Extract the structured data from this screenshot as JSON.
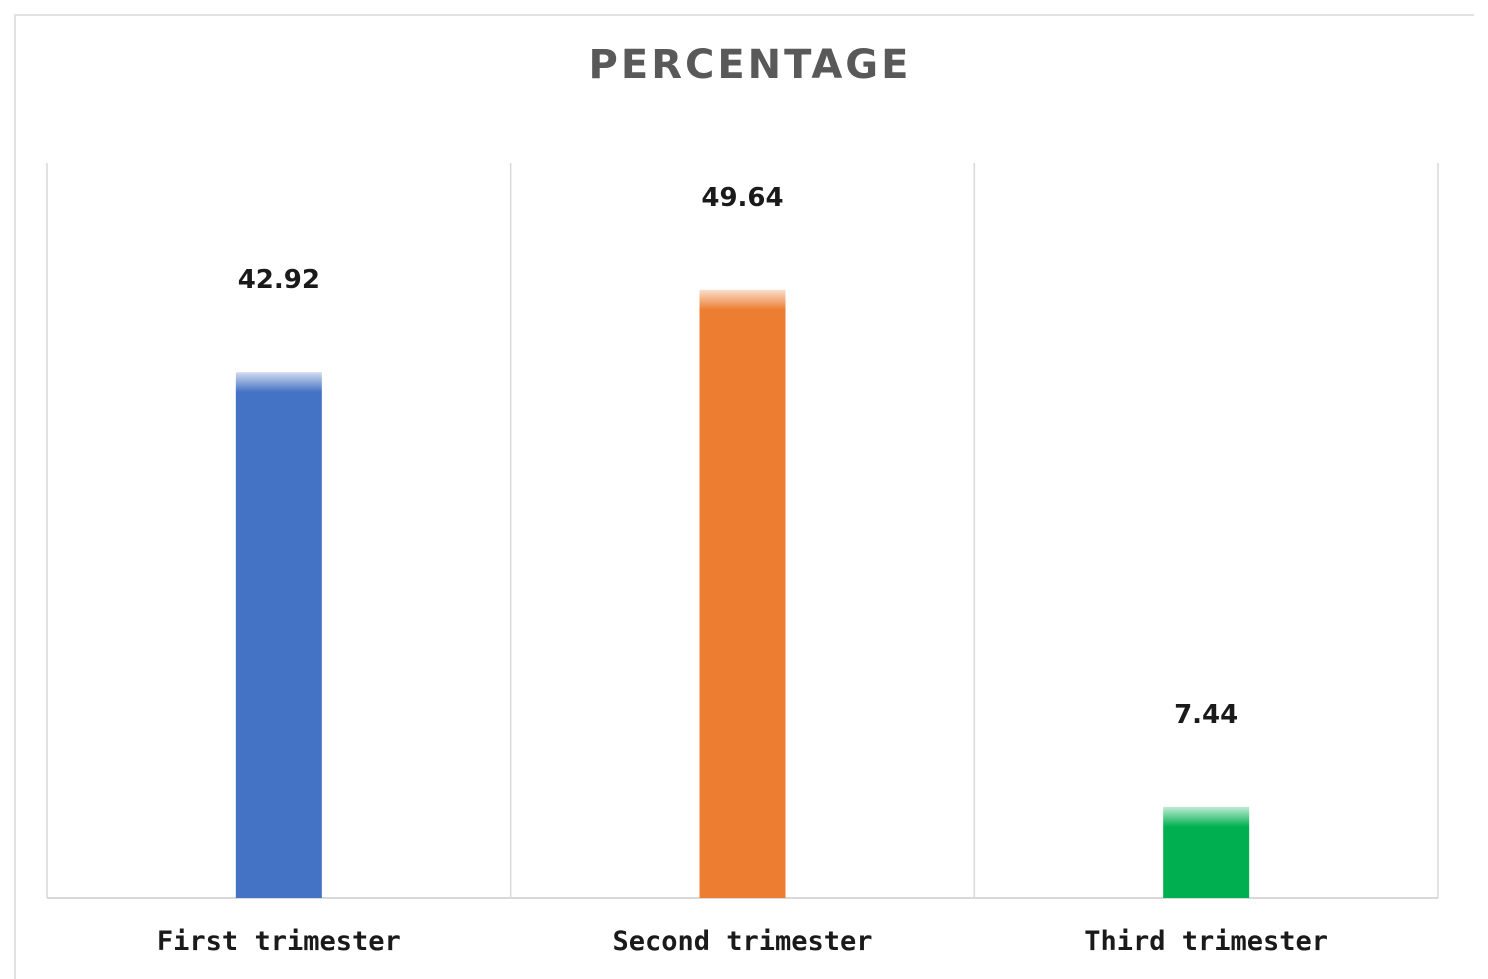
{
  "chart_data": {
    "type": "bar",
    "title": "PERCENTAGE",
    "categories": [
      "First trimester",
      "Second trimester",
      "Third trimester"
    ],
    "values": [
      42.92,
      49.64,
      7.44
    ],
    "value_labels": [
      "42.92",
      "49.64",
      "7.44"
    ],
    "colors": [
      "#4472C4",
      "#ED7D31",
      "#00B050"
    ],
    "xlabel": "",
    "ylabel": "",
    "ylim": [
      0,
      60
    ],
    "grid": "vertical category separators",
    "legend": "none"
  }
}
